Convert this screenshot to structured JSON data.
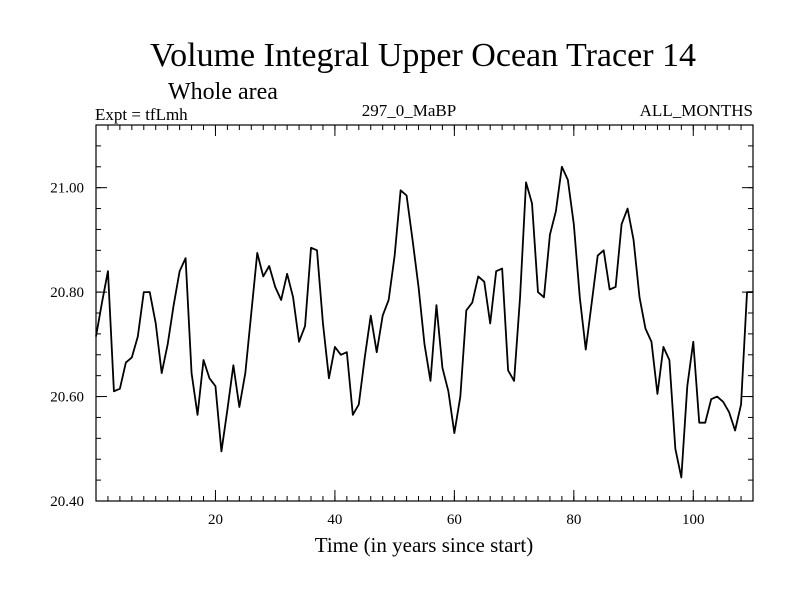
{
  "chart_data": {
    "type": "line",
    "title": "Volume Integral Upper Ocean Tracer 14",
    "subtitle": "Whole area",
    "experiment": "Expt = tfLmh",
    "period": "297_0_MaBP",
    "months": "ALL_MONTHS",
    "xlabel": "Time (in years since start)",
    "ylabel": "",
    "xlim": [
      0,
      110
    ],
    "ylim": [
      20.4,
      21.12
    ],
    "xticks_major": [
      20,
      40,
      60,
      80,
      100
    ],
    "xtick_labels": [
      "20",
      "40",
      "60",
      "80",
      "100"
    ],
    "yticks_major": [
      20.4,
      20.6,
      20.8,
      21.0
    ],
    "ytick_labels": [
      "20.40",
      "20.60",
      "20.80",
      "21.00"
    ],
    "grid": false,
    "series": [
      {
        "name": "Tracer 14",
        "x": [
          0,
          1,
          2,
          3,
          4,
          5,
          6,
          7,
          8,
          9,
          10,
          11,
          12,
          13,
          14,
          15,
          16,
          17,
          18,
          19,
          20,
          21,
          22,
          23,
          24,
          25,
          26,
          27,
          28,
          29,
          30,
          31,
          32,
          33,
          34,
          35,
          36,
          37,
          38,
          39,
          40,
          41,
          42,
          43,
          44,
          45,
          46,
          47,
          48,
          49,
          50,
          51,
          52,
          53,
          54,
          55,
          56,
          57,
          58,
          59,
          60,
          61,
          62,
          63,
          64,
          65,
          66,
          67,
          68,
          69,
          70,
          71,
          72,
          73,
          74,
          75,
          76,
          77,
          78,
          79,
          80,
          81,
          82,
          83,
          84,
          85,
          86,
          87,
          88,
          89,
          90,
          91,
          92,
          93,
          94,
          95,
          96,
          97,
          98,
          99,
          100,
          101,
          102,
          103,
          104,
          105,
          106,
          107,
          108,
          109,
          110
        ],
        "y": [
          20.715,
          20.78,
          20.84,
          20.61,
          20.615,
          20.665,
          20.675,
          20.715,
          20.8,
          20.8,
          20.74,
          20.645,
          20.7,
          20.775,
          20.84,
          20.865,
          20.645,
          20.565,
          20.67,
          20.635,
          20.62,
          20.495,
          20.575,
          20.66,
          20.58,
          20.645,
          20.76,
          20.875,
          20.83,
          20.85,
          20.81,
          20.785,
          20.835,
          20.79,
          20.705,
          20.735,
          20.885,
          20.88,
          20.74,
          20.635,
          20.695,
          20.68,
          20.685,
          20.565,
          20.585,
          20.675,
          20.755,
          20.685,
          20.755,
          20.785,
          20.87,
          20.995,
          20.985,
          20.9,
          20.81,
          20.7,
          20.63,
          20.775,
          20.655,
          20.61,
          20.53,
          20.6,
          20.765,
          20.78,
          20.83,
          20.82,
          20.74,
          20.84,
          20.845,
          20.65,
          20.63,
          20.79,
          21.01,
          20.97,
          20.8,
          20.79,
          20.91,
          20.955,
          21.04,
          21.015,
          20.93,
          20.79,
          20.69,
          20.78,
          20.87,
          20.88,
          20.805,
          20.81,
          20.93,
          20.96,
          20.9,
          20.79,
          20.73,
          20.705,
          20.605,
          20.695,
          20.67,
          20.5,
          20.445,
          20.62,
          20.705,
          20.55,
          20.55,
          20.595,
          20.6,
          20.59,
          20.57,
          20.535,
          20.585,
          20.8,
          20.8
        ]
      }
    ]
  }
}
